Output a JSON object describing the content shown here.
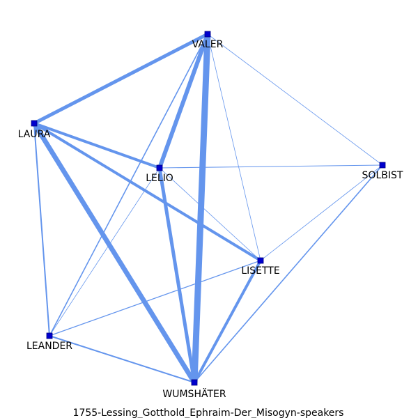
{
  "caption": "1755-Lessing_Gotthold_Ephraim-Der_Misogyn-speakers",
  "colors": {
    "edge": "#6495ED",
    "node_fill": "#0000CD",
    "node_stroke": "#000080",
    "label": "#000000"
  },
  "nodes": [
    {
      "id": "VALER",
      "label": "VALER"
    },
    {
      "id": "LAURA",
      "label": "LAURA"
    },
    {
      "id": "LELIO",
      "label": "LELIO"
    },
    {
      "id": "SOLBIST",
      "label": "SOLBIST"
    },
    {
      "id": "LISETTE",
      "label": "LISETTE"
    },
    {
      "id": "LEANDER",
      "label": "LEANDER"
    },
    {
      "id": "WUMSHÄTER",
      "label": "WUMSHÄTER"
    }
  ],
  "edges": [
    {
      "source": "VALER",
      "target": "WUMSHÄTER",
      "weight": 9
    },
    {
      "source": "LAURA",
      "target": "WUMSHÄTER",
      "weight": 7
    },
    {
      "source": "VALER",
      "target": "LELIO",
      "weight": 6
    },
    {
      "source": "VALER",
      "target": "LAURA",
      "weight": 5
    },
    {
      "source": "LELIO",
      "target": "WUMSHÄTER",
      "weight": 5
    },
    {
      "source": "LAURA",
      "target": "LISETTE",
      "weight": 4
    },
    {
      "source": "LAURA",
      "target": "LELIO",
      "weight": 4
    },
    {
      "source": "LISETTE",
      "target": "WUMSHÄTER",
      "weight": 4
    },
    {
      "source": "LAURA",
      "target": "LEANDER",
      "weight": 2
    },
    {
      "source": "LEANDER",
      "target": "WUMSHÄTER",
      "weight": 2
    },
    {
      "source": "VALER",
      "target": "LEANDER",
      "weight": 1.6
    },
    {
      "source": "SOLBIST",
      "target": "WUMSHÄTER",
      "weight": 1.6
    },
    {
      "source": "LEANDER",
      "target": "LISETTE",
      "weight": 1.3
    },
    {
      "source": "LELIO",
      "target": "SOLBIST",
      "weight": 1
    },
    {
      "source": "VALER",
      "target": "LISETTE",
      "weight": 0.8
    },
    {
      "source": "VALER",
      "target": "SOLBIST",
      "weight": 0.8
    },
    {
      "source": "LISETTE",
      "target": "SOLBIST",
      "weight": 0.8
    },
    {
      "source": "LELIO",
      "target": "LISETTE",
      "weight": 0.8
    },
    {
      "source": "LELIO",
      "target": "LEANDER",
      "weight": 0.8
    }
  ]
}
